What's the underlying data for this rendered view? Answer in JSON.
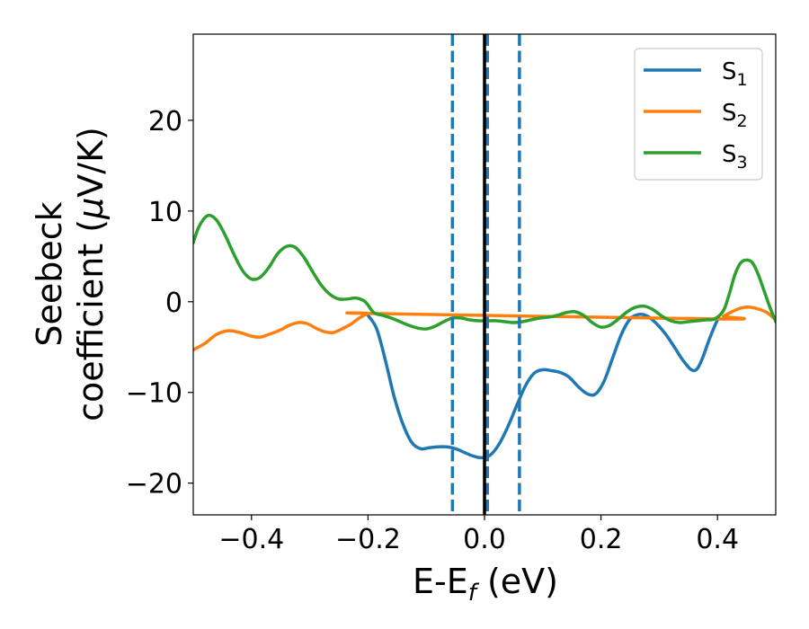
{
  "chart_data": {
    "type": "line",
    "title": "",
    "xlabel": {
      "main": "E-E",
      "sub": "f",
      "unit": " (eV)"
    },
    "ylabel": {
      "line1": "Seebeck",
      "line2": "coefficient  (",
      "mu": "μ",
      "unit": "V/K)"
    },
    "xlim": [
      -0.5,
      0.5
    ],
    "ylim": [
      -23.5,
      29.5
    ],
    "xticks": [
      -0.4,
      -0.2,
      0.0,
      0.2,
      0.4
    ],
    "xtick_labels": [
      "−0.4",
      "−0.2",
      "0.0",
      "0.2",
      "0.4"
    ],
    "yticks": [
      -20,
      -10,
      0,
      10,
      20
    ],
    "ytick_labels": [
      "−20",
      "−10",
      "0",
      "10",
      "20"
    ],
    "grid": false,
    "legend_position": "top-right",
    "vlines": [
      {
        "x": -0.055,
        "style": "dashed",
        "color": "#1f77b4"
      },
      {
        "x": 0.005,
        "style": "dashed",
        "color": "#1f77b4"
      },
      {
        "x": 0.06,
        "style": "dashed",
        "color": "#1f77b4"
      },
      {
        "x": 0.0,
        "style": "solid",
        "color": "#000000"
      }
    ],
    "series": [
      {
        "name": "S",
        "sub": "1",
        "color": "#1f77b4",
        "points": [
          [
            -0.2,
            -1.5
          ],
          [
            -0.185,
            -3
          ],
          [
            -0.17,
            -6.5
          ],
          [
            -0.155,
            -10.5
          ],
          [
            -0.14,
            -13.5
          ],
          [
            -0.125,
            -15.5
          ],
          [
            -0.11,
            -16.2
          ],
          [
            -0.095,
            -16.1
          ],
          [
            -0.08,
            -16
          ],
          [
            -0.065,
            -16
          ],
          [
            -0.05,
            -16.2
          ],
          [
            -0.035,
            -16.6
          ],
          [
            -0.02,
            -17
          ],
          [
            -0.005,
            -17.2
          ],
          [
            0.01,
            -16.9
          ],
          [
            0.025,
            -15.7
          ],
          [
            0.04,
            -13.8
          ],
          [
            0.055,
            -11.5
          ],
          [
            0.07,
            -9.3
          ],
          [
            0.085,
            -7.9
          ],
          [
            0.1,
            -7.5
          ],
          [
            0.115,
            -7.6
          ],
          [
            0.13,
            -7.8
          ],
          [
            0.145,
            -8.3
          ],
          [
            0.16,
            -9.3
          ],
          [
            0.175,
            -10.1
          ],
          [
            0.19,
            -10.2
          ],
          [
            0.205,
            -8.8
          ],
          [
            0.22,
            -6.2
          ],
          [
            0.235,
            -3.6
          ],
          [
            0.25,
            -1.9
          ],
          [
            0.265,
            -1.4
          ],
          [
            0.28,
            -1.6
          ],
          [
            0.295,
            -2.4
          ],
          [
            0.31,
            -3.5
          ],
          [
            0.325,
            -4.9
          ],
          [
            0.34,
            -6.4
          ],
          [
            0.355,
            -7.5
          ],
          [
            0.365,
            -7.4
          ],
          [
            0.375,
            -6.1
          ],
          [
            0.385,
            -4.3
          ],
          [
            0.395,
            -2.7
          ],
          [
            0.4,
            -2.0
          ]
        ]
      },
      {
        "name": "S",
        "sub": "2",
        "color": "#ff7f0e",
        "points": [
          [
            -0.5,
            -5.3
          ],
          [
            -0.48,
            -4.6
          ],
          [
            -0.46,
            -3.6
          ],
          [
            -0.44,
            -3.2
          ],
          [
            -0.42,
            -3.4
          ],
          [
            -0.4,
            -3.8
          ],
          [
            -0.385,
            -3.9
          ],
          [
            -0.37,
            -3.6
          ],
          [
            -0.35,
            -3.1
          ],
          [
            -0.335,
            -2.6
          ],
          [
            -0.32,
            -2.3
          ],
          [
            -0.305,
            -2.4
          ],
          [
            -0.29,
            -2.9
          ],
          [
            -0.275,
            -3.3
          ],
          [
            -0.26,
            -3.4
          ],
          [
            -0.245,
            -3.0
          ],
          [
            -0.23,
            -2.5
          ],
          [
            -0.215,
            -1.8
          ],
          [
            -0.2,
            -1.3
          ],
          [
            -0.19,
            -1.3
          ],
          [
            0.4,
            -1.9
          ],
          [
            0.41,
            -1.6
          ],
          [
            0.425,
            -1.1
          ],
          [
            0.44,
            -0.7
          ],
          [
            0.455,
            -0.6
          ],
          [
            0.47,
            -0.8
          ],
          [
            0.485,
            -1.2
          ],
          [
            0.5,
            -2.0
          ]
        ]
      },
      {
        "name": "S",
        "sub": "3",
        "color": "#2ca02c",
        "points": [
          [
            -0.5,
            6.5
          ],
          [
            -0.49,
            8.3
          ],
          [
            -0.475,
            9.5
          ],
          [
            -0.46,
            9.0
          ],
          [
            -0.445,
            7.3
          ],
          [
            -0.43,
            5.2
          ],
          [
            -0.415,
            3.4
          ],
          [
            -0.4,
            2.5
          ],
          [
            -0.385,
            2.7
          ],
          [
            -0.37,
            3.8
          ],
          [
            -0.355,
            5.3
          ],
          [
            -0.34,
            6.1
          ],
          [
            -0.325,
            6.0
          ],
          [
            -0.31,
            4.9
          ],
          [
            -0.295,
            3.3
          ],
          [
            -0.28,
            1.8
          ],
          [
            -0.265,
            0.8
          ],
          [
            -0.25,
            0.3
          ],
          [
            -0.235,
            0.3
          ],
          [
            -0.22,
            0.4
          ],
          [
            -0.205,
            0.0
          ],
          [
            -0.19,
            -1.2
          ],
          [
            -0.175,
            -1.5
          ],
          [
            -0.16,
            -1.8
          ],
          [
            -0.145,
            -2.2
          ],
          [
            -0.13,
            -2.6
          ],
          [
            -0.115,
            -2.9
          ],
          [
            -0.1,
            -3.0
          ],
          [
            -0.085,
            -2.7
          ],
          [
            -0.07,
            -2.2
          ],
          [
            -0.055,
            -1.8
          ],
          [
            -0.04,
            -1.8
          ],
          [
            -0.025,
            -2.0
          ],
          [
            -0.01,
            -2.1
          ],
          [
            0.005,
            -2.1
          ],
          [
            0.02,
            -2.1
          ],
          [
            0.035,
            -2.2
          ],
          [
            0.05,
            -2.3
          ],
          [
            0.065,
            -2.2
          ],
          [
            0.08,
            -2.0
          ],
          [
            0.095,
            -1.8
          ],
          [
            0.11,
            -1.7
          ],
          [
            0.125,
            -1.5
          ],
          [
            0.14,
            -1.2
          ],
          [
            0.155,
            -1.1
          ],
          [
            0.17,
            -1.5
          ],
          [
            0.185,
            -2.3
          ],
          [
            0.2,
            -2.8
          ],
          [
            0.215,
            -2.6
          ],
          [
            0.23,
            -1.9
          ],
          [
            0.245,
            -1.1
          ],
          [
            0.26,
            -0.6
          ],
          [
            0.275,
            -0.5
          ],
          [
            0.29,
            -0.9
          ],
          [
            0.305,
            -1.6
          ],
          [
            0.32,
            -2.1
          ],
          [
            0.335,
            -2.3
          ],
          [
            0.35,
            -2.2
          ],
          [
            0.365,
            -2.1
          ],
          [
            0.38,
            -2.0
          ],
          [
            0.395,
            -1.9
          ],
          [
            0.41,
            -1.0
          ],
          [
            0.42,
            0.8
          ],
          [
            0.43,
            3.0
          ],
          [
            0.44,
            4.3
          ],
          [
            0.45,
            4.6
          ],
          [
            0.46,
            4.3
          ],
          [
            0.47,
            3.0
          ],
          [
            0.48,
            1.2
          ],
          [
            0.49,
            -0.6
          ],
          [
            0.5,
            -2.2
          ]
        ]
      }
    ]
  }
}
